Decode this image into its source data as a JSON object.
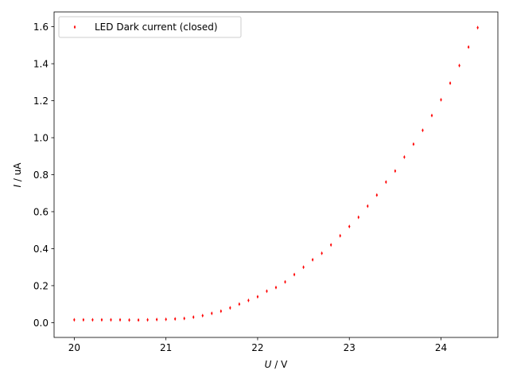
{
  "chart_data": {
    "type": "scatter",
    "xlabel_var": "U",
    "xlabel_unit": " / V",
    "ylabel_var": "I",
    "ylabel_unit": " / uA",
    "xlim": [
      19.78,
      24.62
    ],
    "ylim": [
      -0.08,
      1.68
    ],
    "xticks": [
      20,
      21,
      22,
      23,
      24
    ],
    "yticks": [
      0.0,
      0.2,
      0.4,
      0.6,
      0.8,
      1.0,
      1.2,
      1.4,
      1.6
    ],
    "ytick_labels": [
      "0.0",
      "0.2",
      "0.4",
      "0.6",
      "0.8",
      "1.0",
      "1.2",
      "1.4",
      "1.6"
    ],
    "legend_position": "upper left",
    "grid": false,
    "series": [
      {
        "name": "LED Dark current (closed)",
        "color": "#ff0000",
        "marker": "thin-diamond",
        "points": [
          [
            20.0,
            0.015
          ],
          [
            20.1,
            0.015
          ],
          [
            20.2,
            0.015
          ],
          [
            20.3,
            0.015
          ],
          [
            20.4,
            0.015
          ],
          [
            20.5,
            0.015
          ],
          [
            20.6,
            0.014
          ],
          [
            20.7,
            0.014
          ],
          [
            20.8,
            0.015
          ],
          [
            20.9,
            0.017
          ],
          [
            21.0,
            0.018
          ],
          [
            21.1,
            0.02
          ],
          [
            21.2,
            0.023
          ],
          [
            21.3,
            0.03
          ],
          [
            21.4,
            0.038
          ],
          [
            21.5,
            0.05
          ],
          [
            21.6,
            0.062
          ],
          [
            21.7,
            0.08
          ],
          [
            21.8,
            0.1
          ],
          [
            21.9,
            0.12
          ],
          [
            22.0,
            0.14
          ],
          [
            22.1,
            0.17
          ],
          [
            22.2,
            0.19
          ],
          [
            22.3,
            0.22
          ],
          [
            22.4,
            0.26
          ],
          [
            22.5,
            0.3
          ],
          [
            22.6,
            0.34
          ],
          [
            22.7,
            0.375
          ],
          [
            22.8,
            0.42
          ],
          [
            22.9,
            0.47
          ],
          [
            23.0,
            0.52
          ],
          [
            23.1,
            0.57
          ],
          [
            23.2,
            0.63
          ],
          [
            23.3,
            0.69
          ],
          [
            23.4,
            0.76
          ],
          [
            23.5,
            0.82
          ],
          [
            23.6,
            0.895
          ],
          [
            23.7,
            0.965
          ],
          [
            23.8,
            1.04
          ],
          [
            23.9,
            1.12
          ],
          [
            24.0,
            1.205
          ],
          [
            24.1,
            1.295
          ],
          [
            24.2,
            1.39
          ],
          [
            24.3,
            1.49
          ],
          [
            24.4,
            1.595
          ]
        ]
      }
    ]
  }
}
